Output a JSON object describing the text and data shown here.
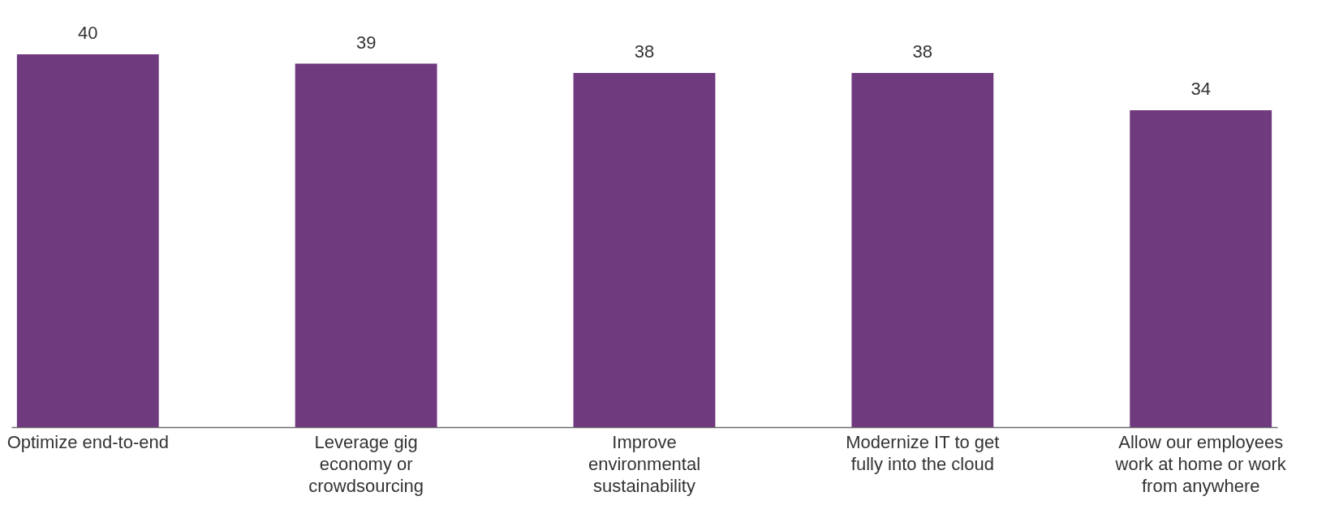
{
  "chart_data": {
    "type": "bar",
    "categories": [
      "Optimize end-to-end",
      "Leverage gig economy or crowdsourcing",
      "Improve environmental sustainability",
      "Modernize IT to get fully into the cloud",
      "Allow our employees work at home or work from anywhere"
    ],
    "values": [
      40,
      39,
      38,
      38,
      34
    ],
    "color": "#6f3a7e",
    "data_labels": true
  }
}
